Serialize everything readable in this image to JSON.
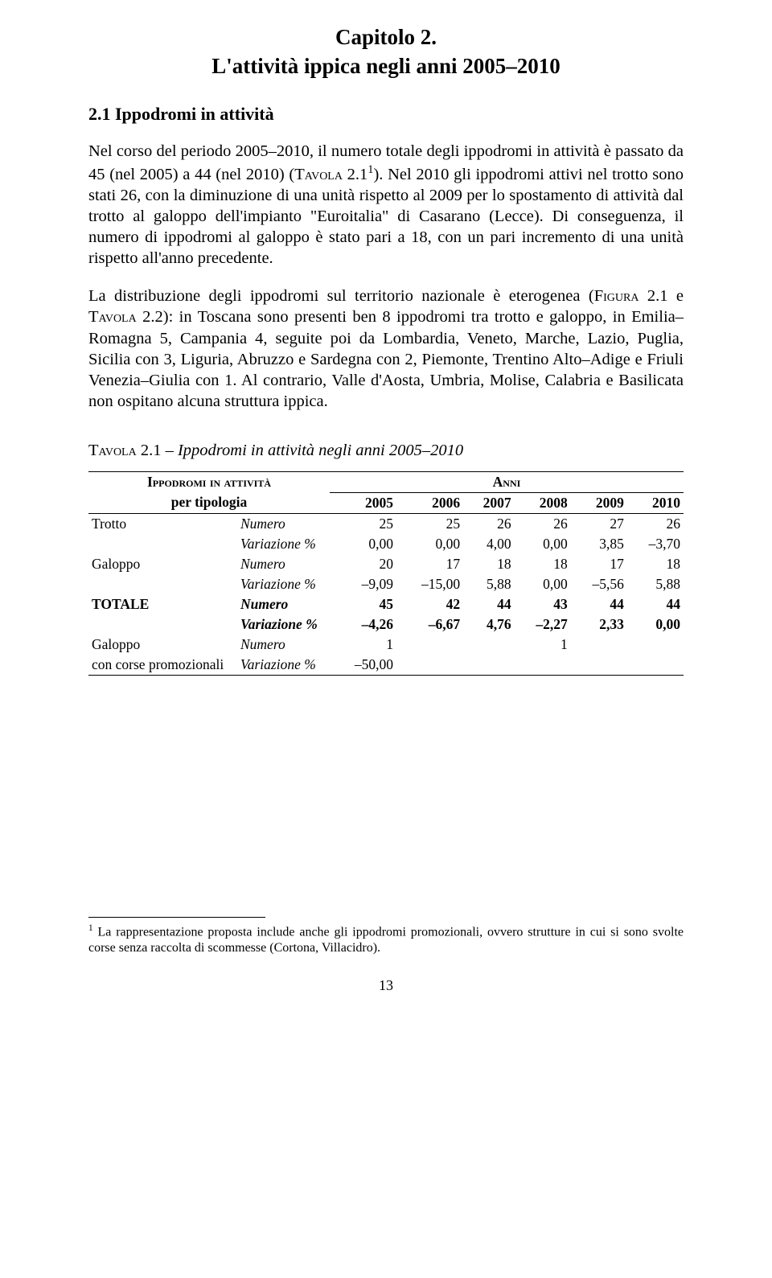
{
  "chapter": {
    "line1": "Capitolo 2.",
    "line2": "L'attività ippica negli anni 2005–2010"
  },
  "section": {
    "title": "2.1 Ippodromi in attività"
  },
  "paragraphs": {
    "p1a": "Nel corso del periodo 2005–2010, il numero totale degli ippodromi in attività è passato da 45 (nel 2005) a 44 (nel 2010) (",
    "p1_sc": "Tavola",
    "p1b": " 2.1",
    "p1_sup": "1",
    "p1c": "). Nel 2010 gli ippodromi attivi nel trotto sono stati 26, con la diminuzione di una unità rispetto al 2009 per lo spostamento di attività dal trotto al galoppo dell'impianto \"Euroitalia\" di Casarano (Lecce). Di conseguenza, il numero di ippodromi al galoppo è stato pari a 18, con un pari incremento di una unità rispetto all'anno precedente.",
    "p2a": "La distribuzione degli ippodromi sul territorio nazionale è eterogenea (",
    "p2_sc1": "Figura",
    "p2b": " 2.1 e ",
    "p2_sc2": "Tavola",
    "p2c": " 2.2): in Toscana sono presenti ben 8 ippodromi tra trotto e galoppo, in Emilia–Romagna 5, Campania 4, seguite poi da Lombardia, Veneto, Marche, Lazio, Puglia, Sicilia con 3, Liguria, Abruzzo e Sardegna con 2, Piemonte, Trentino Alto–Adige e Friuli Venezia–Giulia con 1. Al contrario, Valle d'Aosta, Umbria, Molise, Calabria e Basilicata non ospitano alcuna struttura ippica."
  },
  "table": {
    "caption_sc": "Tavola",
    "caption_rest": " 2.1 – ",
    "caption_ital": "Ippodromi in attività negli anni 2005–2010",
    "head_rowgroup": "Ippodromi in attività",
    "head_rowgroup_sub": "per tipologia",
    "head_anni": "Anni",
    "years": [
      "2005",
      "2006",
      "2007",
      "2008",
      "2009",
      "2010"
    ],
    "rows": [
      {
        "cat": "Trotto",
        "label": "Numero",
        "vals": [
          "25",
          "25",
          "26",
          "26",
          "27",
          "26"
        ],
        "bold": false
      },
      {
        "cat": "",
        "label": "Variazione %",
        "vals": [
          "0,00",
          "0,00",
          "4,00",
          "0,00",
          "3,85",
          "–3,70"
        ],
        "bold": false,
        "ital": true
      },
      {
        "cat": "Galoppo",
        "label": "Numero",
        "vals": [
          "20",
          "17",
          "18",
          "18",
          "17",
          "18"
        ],
        "bold": false
      },
      {
        "cat": "",
        "label": "Variazione %",
        "vals": [
          "–9,09",
          "–15,00",
          "5,88",
          "0,00",
          "–5,56",
          "5,88"
        ],
        "bold": false,
        "ital": true
      },
      {
        "cat": "TOTALE",
        "label": "Numero",
        "vals": [
          "45",
          "42",
          "44",
          "43",
          "44",
          "44"
        ],
        "bold": true
      },
      {
        "cat": "",
        "label": "Variazione %",
        "vals": [
          "–4,26",
          "–6,67",
          "4,76",
          "–2,27",
          "2,33",
          "0,00"
        ],
        "bold": true,
        "boldital": true
      },
      {
        "cat": "Galoppo",
        "label": "Numero",
        "vals": [
          "1",
          "",
          "",
          "1",
          "",
          ""
        ],
        "bold": false
      },
      {
        "cat": "con corse promozionali",
        "label": "Variazione %",
        "vals": [
          "–50,00",
          "",
          "",
          "",
          "",
          ""
        ],
        "bold": false,
        "ital": true
      }
    ]
  },
  "footnote": {
    "marker": "1",
    "text": " La rappresentazione proposta include anche gli ippodromi promozionali, ovvero strutture in cui si sono svolte corse senza raccolta di scommesse (Cortona, Villacidro)."
  },
  "page_number": "13"
}
